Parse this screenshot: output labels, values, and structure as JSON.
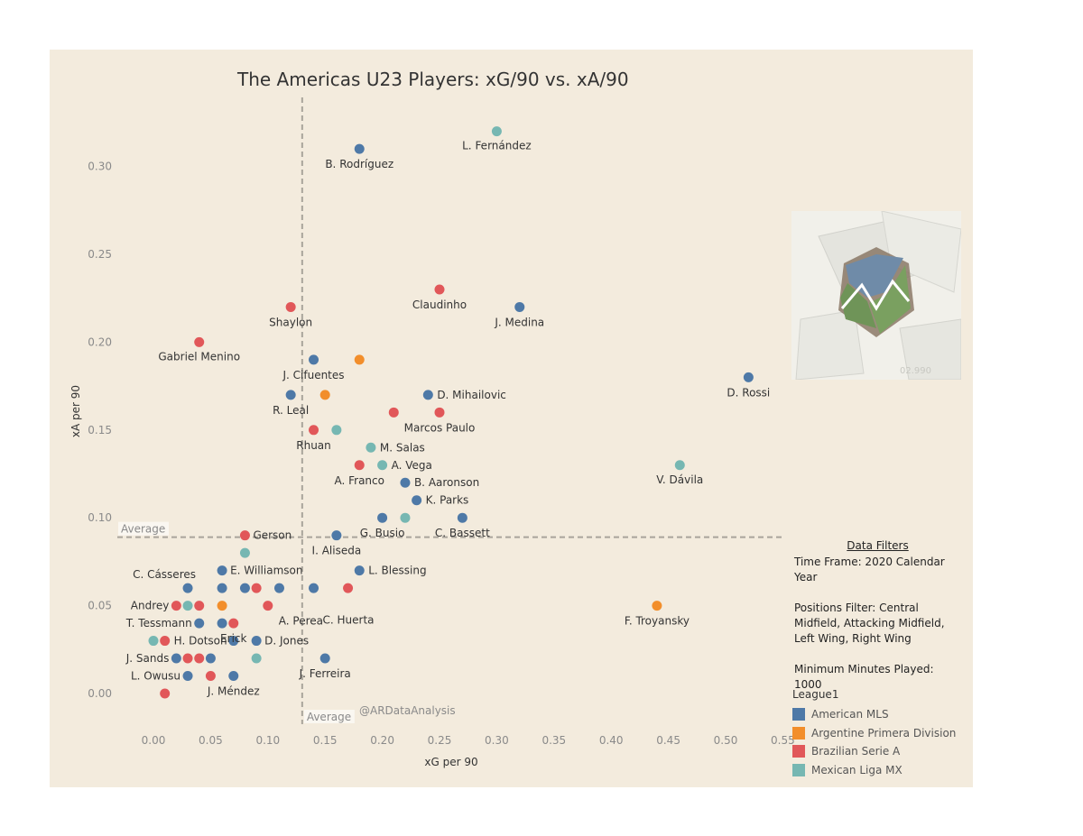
{
  "chart_data": {
    "type": "scatter",
    "title": "The Americas U23 Players: xG/90 vs. xA/90",
    "xlabel": "xG per 90",
    "ylabel": "xA per 90",
    "xlim": [
      -0.03,
      0.55
    ],
    "ylim": [
      -0.015,
      0.33
    ],
    "x_ticks": [
      "0.00",
      "0.05",
      "0.10",
      "0.15",
      "0.20",
      "0.25",
      "0.30",
      "0.35",
      "0.40",
      "0.45",
      "0.50",
      "0.55"
    ],
    "y_ticks": [
      "0.00",
      "0.05",
      "0.10",
      "0.15",
      "0.20",
      "0.25",
      "0.30"
    ],
    "averages": {
      "x": 0.13,
      "y": 0.089,
      "x_label": "Average",
      "y_label": "Average"
    },
    "league_colors": {
      "American MLS": "#4e79a7",
      "Argentine Primera Division": "#f28e2b",
      "Brazilian Serie A": "#e15759",
      "Mexican Liga MX": "#76b7b2"
    },
    "points": [
      {
        "x": 0.3,
        "y": 0.32,
        "league": "Mexican Liga MX",
        "label": "L. Fernández"
      },
      {
        "x": 0.18,
        "y": 0.31,
        "league": "American MLS",
        "label": "B. Rodríguez"
      },
      {
        "x": 0.25,
        "y": 0.23,
        "league": "Brazilian Serie A",
        "label": "Claudinho"
      },
      {
        "x": 0.32,
        "y": 0.22,
        "league": "American MLS",
        "label": "J. Medina"
      },
      {
        "x": 0.12,
        "y": 0.22,
        "league": "Brazilian Serie A",
        "label": "Shaylon"
      },
      {
        "x": 0.04,
        "y": 0.2,
        "league": "Brazilian Serie A",
        "label": "Gabriel Menino"
      },
      {
        "x": 0.14,
        "y": 0.19,
        "league": "American MLS",
        "label": "J. Cifuentes"
      },
      {
        "x": 0.18,
        "y": 0.19,
        "league": "Argentine Primera Division",
        "label": ""
      },
      {
        "x": 0.52,
        "y": 0.18,
        "league": "American MLS",
        "label": "D. Rossi"
      },
      {
        "x": 0.12,
        "y": 0.17,
        "league": "American MLS",
        "label": "R. Leal"
      },
      {
        "x": 0.15,
        "y": 0.17,
        "league": "Argentine Primera Division",
        "label": ""
      },
      {
        "x": 0.24,
        "y": 0.17,
        "league": "American MLS",
        "label": "D. Mihailovic"
      },
      {
        "x": 0.21,
        "y": 0.16,
        "league": "Brazilian Serie A",
        "label": ""
      },
      {
        "x": 0.25,
        "y": 0.16,
        "league": "Brazilian Serie A",
        "label": "Marcos Paulo"
      },
      {
        "x": 0.14,
        "y": 0.15,
        "league": "Brazilian Serie A",
        "label": "Rhuan"
      },
      {
        "x": 0.16,
        "y": 0.15,
        "league": "Mexican Liga MX",
        "label": ""
      },
      {
        "x": 0.19,
        "y": 0.14,
        "league": "Mexican Liga MX",
        "label": "M. Salas"
      },
      {
        "x": 0.18,
        "y": 0.13,
        "league": "Brazilian Serie A",
        "label": "A. Franco"
      },
      {
        "x": 0.2,
        "y": 0.13,
        "league": "Mexican Liga MX",
        "label": "A. Vega"
      },
      {
        "x": 0.46,
        "y": 0.13,
        "league": "Mexican Liga MX",
        "label": "V. Dávila"
      },
      {
        "x": 0.22,
        "y": 0.12,
        "league": "American MLS",
        "label": "B. Aaronson"
      },
      {
        "x": 0.23,
        "y": 0.11,
        "league": "American MLS",
        "label": "K. Parks"
      },
      {
        "x": 0.2,
        "y": 0.1,
        "league": "American MLS",
        "label": "G. Busio"
      },
      {
        "x": 0.22,
        "y": 0.1,
        "league": "Mexican Liga MX",
        "label": ""
      },
      {
        "x": 0.27,
        "y": 0.1,
        "league": "American MLS",
        "label": "C. Bassett"
      },
      {
        "x": 0.08,
        "y": 0.09,
        "league": "Brazilian Serie A",
        "label": "Gerson"
      },
      {
        "x": 0.16,
        "y": 0.09,
        "league": "American MLS",
        "label": "I. Aliseda"
      },
      {
        "x": 0.08,
        "y": 0.08,
        "league": "Mexican Liga MX",
        "label": ""
      },
      {
        "x": 0.06,
        "y": 0.07,
        "league": "American MLS",
        "label": "E. Williamson"
      },
      {
        "x": 0.18,
        "y": 0.07,
        "league": "American MLS",
        "label": "L. Blessing"
      },
      {
        "x": 0.03,
        "y": 0.06,
        "league": "American MLS",
        "label": "C. Cásseres"
      },
      {
        "x": 0.06,
        "y": 0.06,
        "league": "American MLS",
        "label": ""
      },
      {
        "x": 0.08,
        "y": 0.06,
        "league": "American MLS",
        "label": ""
      },
      {
        "x": 0.09,
        "y": 0.06,
        "league": "Brazilian Serie A",
        "label": ""
      },
      {
        "x": 0.11,
        "y": 0.06,
        "league": "American MLS",
        "label": ""
      },
      {
        "x": 0.14,
        "y": 0.06,
        "league": "American MLS",
        "label": ""
      },
      {
        "x": 0.17,
        "y": 0.06,
        "league": "Brazilian Serie A",
        "label": ""
      },
      {
        "x": 0.1,
        "y": 0.05,
        "league": "Brazilian Serie A",
        "label": "A. Perea"
      },
      {
        "x": 0.14,
        "y": 0.05,
        "league": "American MLS",
        "label": "C. Huerta",
        "marker": false
      },
      {
        "x": 0.02,
        "y": 0.05,
        "league": "Brazilian Serie A",
        "label": "Andrey"
      },
      {
        "x": 0.03,
        "y": 0.05,
        "league": "Mexican Liga MX",
        "label": ""
      },
      {
        "x": 0.04,
        "y": 0.05,
        "league": "Brazilian Serie A",
        "label": ""
      },
      {
        "x": 0.06,
        "y": 0.05,
        "league": "Argentine Primera Division",
        "label": ""
      },
      {
        "x": 0.44,
        "y": 0.05,
        "league": "Argentine Primera Division",
        "label": "F. Troyansky"
      },
      {
        "x": 0.04,
        "y": 0.04,
        "league": "American MLS",
        "label": "T. Tessmann"
      },
      {
        "x": 0.06,
        "y": 0.04,
        "league": "American MLS",
        "label": ""
      },
      {
        "x": 0.07,
        "y": 0.04,
        "league": "Brazilian Serie A",
        "label": "Erick"
      },
      {
        "x": 0.0,
        "y": 0.03,
        "league": "Mexican Liga MX",
        "label": ""
      },
      {
        "x": 0.01,
        "y": 0.03,
        "league": "Brazilian Serie A",
        "label": "H. Dotson"
      },
      {
        "x": 0.07,
        "y": 0.03,
        "league": "American MLS",
        "label": ""
      },
      {
        "x": 0.09,
        "y": 0.03,
        "league": "American MLS",
        "label": "D. Jones"
      },
      {
        "x": 0.02,
        "y": 0.02,
        "league": "American MLS",
        "label": "J. Sands"
      },
      {
        "x": 0.03,
        "y": 0.02,
        "league": "Brazilian Serie A",
        "label": ""
      },
      {
        "x": 0.04,
        "y": 0.02,
        "league": "Brazilian Serie A",
        "label": ""
      },
      {
        "x": 0.05,
        "y": 0.02,
        "league": "American MLS",
        "label": ""
      },
      {
        "x": 0.09,
        "y": 0.02,
        "league": "Mexican Liga MX",
        "label": ""
      },
      {
        "x": 0.15,
        "y": 0.02,
        "league": "American MLS",
        "label": "J. Ferreira"
      },
      {
        "x": 0.03,
        "y": 0.01,
        "league": "American MLS",
        "label": "L. Owusu"
      },
      {
        "x": 0.05,
        "y": 0.01,
        "league": "Brazilian Serie A",
        "label": ""
      },
      {
        "x": 0.07,
        "y": 0.01,
        "league": "American MLS",
        "label": "J. Méndez"
      },
      {
        "x": 0.01,
        "y": 0.0,
        "league": "Brazilian Serie A",
        "label": ""
      }
    ],
    "legend": {
      "title": "League1",
      "entries": [
        "American MLS",
        "Argentine Primera Division",
        "Brazilian Serie A",
        "Mexican Liga MX"
      ]
    }
  },
  "credit": "@ARDataAnalysis",
  "filters": {
    "title": "Data Filters",
    "time_frame": "Time Frame: 2020 Calendar Year",
    "positions": "Positions Filter: Central Midfield, Attacking Midfield, Left Wing, Right Wing",
    "minutes": "Minimum Minutes Played: 1000"
  },
  "logo_icon": "pentagon-m-logo-icon"
}
